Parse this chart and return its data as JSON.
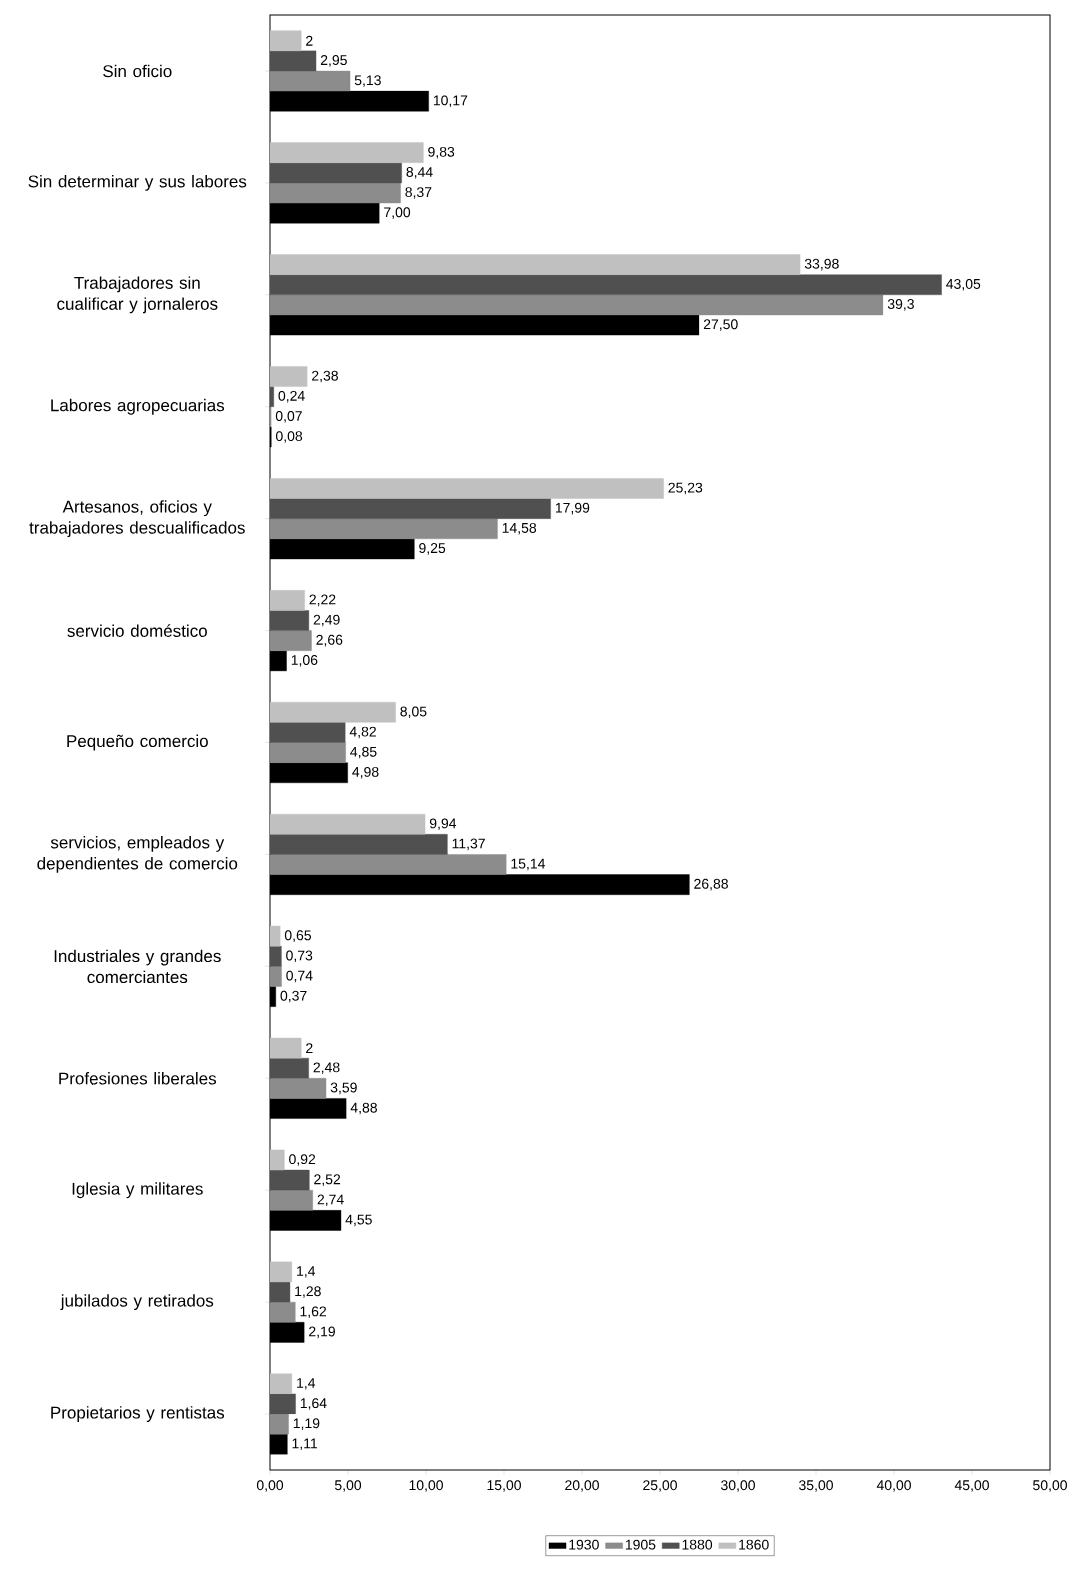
{
  "chart_data": {
    "type": "bar",
    "orientation": "horizontal",
    "categories": [
      "Sin oficio",
      "Sin determinar y sus labores",
      "Trabajadores sin cualificar y jornaleros",
      "Labores agropecuarias",
      "Artesanos, oficios y trabajadores descualificados",
      "servicio doméstico",
      "Pequeño comercio",
      "servicios, empleados y dependientes de comercio",
      "Industriales y grandes comerciantes",
      "Profesiones liberales",
      "Iglesia y militares",
      "jubilados y retirados",
      "Propietarios y rentistas"
    ],
    "series": [
      {
        "name": "1930",
        "color": "#000000",
        "values": [
          10.17,
          7.0,
          27.5,
          0.08,
          9.25,
          1.06,
          4.98,
          26.88,
          0.37,
          4.88,
          4.55,
          2.19,
          1.11
        ],
        "value_labels": [
          "10,17",
          "7,00",
          "27,50",
          "0,08",
          "9,25",
          "1,06",
          "4,98",
          "26,88",
          "0,37",
          "4,88",
          "4,55",
          "2,19",
          "1,11"
        ]
      },
      {
        "name": "1905",
        "color": "#8c8c8c",
        "values": [
          5.13,
          8.37,
          39.3,
          0.07,
          14.58,
          2.66,
          4.85,
          15.14,
          0.74,
          3.59,
          2.74,
          1.62,
          1.19
        ],
        "value_labels": [
          "5,13",
          "8,37",
          "39,3",
          "0,07",
          "14,58",
          "2,66",
          "4,85",
          "15,14",
          "0,74",
          "3,59",
          "2,74",
          "1,62",
          "1,19"
        ]
      },
      {
        "name": "1880",
        "color": "#505050",
        "values": [
          2.95,
          8.44,
          43.05,
          0.24,
          17.99,
          2.49,
          4.82,
          11.37,
          0.73,
          2.48,
          2.52,
          1.28,
          1.64
        ],
        "value_labels": [
          "2,95",
          "8,44",
          "43,05",
          "0,24",
          "17,99",
          "2,49",
          "4,82",
          "11,37",
          "0,73",
          "2,48",
          "2,52",
          "1,28",
          "1,64"
        ]
      },
      {
        "name": "1860",
        "color": "#c0c0c0",
        "values": [
          2,
          9.83,
          33.98,
          2.38,
          25.23,
          2.22,
          8.05,
          9.94,
          0.65,
          2,
          0.92,
          1.4,
          1.4
        ],
        "value_labels": [
          "2",
          "9,83",
          "33,98",
          "2,38",
          "25,23",
          "2,22",
          "8,05",
          "9,94",
          "0,65",
          "2",
          "0,92",
          "1,4",
          "1,4"
        ]
      }
    ],
    "xlim": [
      0,
      50
    ],
    "xticks": [
      {
        "value": 0,
        "label": "0,00"
      },
      {
        "value": 5,
        "label": "5,00"
      },
      {
        "value": 10,
        "label": "10,00"
      },
      {
        "value": 15,
        "label": "15,00"
      },
      {
        "value": 20,
        "label": "20,00"
      },
      {
        "value": 25,
        "label": "25,00"
      },
      {
        "value": 30,
        "label": "30,00"
      },
      {
        "value": 35,
        "label": "35,00"
      },
      {
        "value": 40,
        "label": "40,00"
      },
      {
        "value": 45,
        "label": "45,00"
      },
      {
        "value": 50,
        "label": "50,00"
      }
    ],
    "grid": false,
    "legend": "bottom"
  }
}
